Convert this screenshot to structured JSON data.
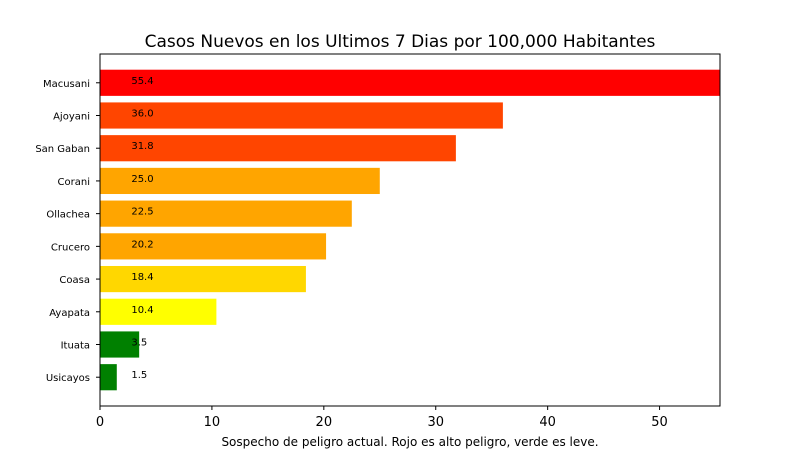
{
  "chart_data": {
    "type": "bar",
    "orientation": "horizontal",
    "title": "Casos Nuevos en los Ultimos 7 Dias por 100,000 Habitantes",
    "xlabel": "Sospecho de peligro actual. Rojo es alto peligro, verde es leve.",
    "ylabel": "",
    "xlim": [
      0,
      55.4
    ],
    "xticks": [
      0,
      10,
      20,
      30,
      40,
      50
    ],
    "categories": [
      "Macusani",
      "Ajoyani",
      "San Gaban",
      "Corani",
      "Ollachea",
      "Crucero",
      "Coasa",
      "Ayapata",
      "Ituata",
      "Usicayos"
    ],
    "values": [
      55.4,
      36.0,
      31.8,
      25.0,
      22.5,
      20.2,
      18.4,
      10.4,
      3.5,
      1.5
    ],
    "value_labels": [
      "55.4",
      "36.0",
      "31.8",
      "25.0",
      "22.5",
      "20.2",
      "18.4",
      "10.4",
      "3.5",
      "1.5"
    ],
    "colors": [
      "#ff0000",
      "#ff4500",
      "#ff4500",
      "#ffa500",
      "#ffa500",
      "#ffa500",
      "#ffd700",
      "#ffff00",
      "#008000",
      "#008000"
    ],
    "label_x_value": 2.8,
    "grid": false
  }
}
